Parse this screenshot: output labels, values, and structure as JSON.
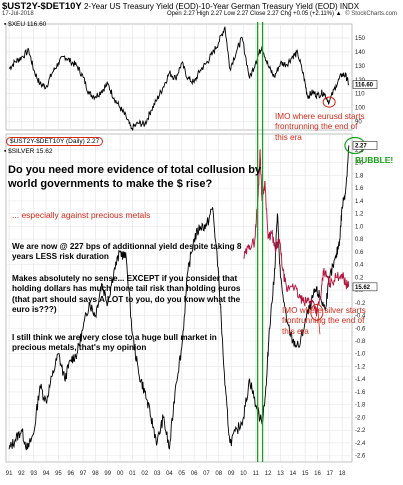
{
  "header": {
    "symbol": "$UST2Y-$DET10Y",
    "description": "2-Year US Treasury Yield (EOD)-10-Year German Treasury Yield (EOD) INDX",
    "date": "17-Jul-2018",
    "ohlc": "Open 2.27 High 2.27 Low 2.27 Close 2.27 Chg +0.05 (+2.11%) ▲",
    "brand": "© StockCharts.com"
  },
  "chart_data": [
    {
      "type": "line",
      "name": "upper-panel",
      "legend": "▪ $XEU 116.60",
      "series": [
        {
          "name": "$XEU",
          "color": "#000000",
          "points": [
            [
              1991.0,
              128
            ],
            [
              1991.5,
              133
            ],
            [
              1992.0,
              136
            ],
            [
              1992.6,
              141
            ],
            [
              1993.0,
              127
            ],
            [
              1993.5,
              117
            ],
            [
              1994.0,
              115
            ],
            [
              1994.5,
              125
            ],
            [
              1995.0,
              132
            ],
            [
              1995.5,
              137
            ],
            [
              1996.0,
              133
            ],
            [
              1996.5,
              130
            ],
            [
              1997.0,
              122
            ],
            [
              1997.5,
              110
            ],
            [
              1998.0,
              108
            ],
            [
              1998.5,
              112
            ],
            [
              1999.0,
              117
            ],
            [
              1999.5,
              107
            ],
            [
              2000.0,
              100
            ],
            [
              2000.5,
              93
            ],
            [
              2000.9,
              85
            ],
            [
              2001.5,
              89
            ],
            [
              2002.0,
              88
            ],
            [
              2002.5,
              98
            ],
            [
              2003.0,
              106
            ],
            [
              2003.5,
              115
            ],
            [
              2004.0,
              125
            ],
            [
              2004.5,
              121
            ],
            [
              2005.0,
              132
            ],
            [
              2005.5,
              121
            ],
            [
              2006.0,
              118
            ],
            [
              2006.5,
              127
            ],
            [
              2007.0,
              132
            ],
            [
              2007.5,
              139
            ],
            [
              2008.0,
              147
            ],
            [
              2008.5,
              158
            ],
            [
              2008.9,
              128
            ],
            [
              2009.5,
              142
            ],
            [
              2009.9,
              150
            ],
            [
              2010.5,
              121
            ],
            [
              2011.0,
              133
            ],
            [
              2011.5,
              144
            ],
            [
              2012.0,
              130
            ],
            [
              2012.5,
              122
            ],
            [
              2013.0,
              132
            ],
            [
              2013.5,
              131
            ],
            [
              2014.0,
              137
            ],
            [
              2014.4,
              139
            ],
            [
              2014.9,
              122
            ],
            [
              2015.2,
              108
            ],
            [
              2015.6,
              111
            ],
            [
              2016.0,
              109
            ],
            [
              2016.5,
              111
            ],
            [
              2016.95,
              104
            ],
            [
              2017.5,
              116
            ],
            [
              2018.0,
              124
            ],
            [
              2018.3,
              123
            ],
            [
              2018.55,
              116.6
            ]
          ]
        }
      ],
      "y_ticks": [
        90,
        100,
        110,
        120,
        130,
        140,
        150
      ],
      "ylim": [
        84,
        160
      ],
      "last_value": "116.60"
    },
    {
      "type": "line",
      "name": "lower-panel",
      "legend_1": "$UST2Y-$DET10Y (Daily) 2.27",
      "legend_2": "▪ $SILVER 15.62",
      "series": [
        {
          "name": "$UST2Y-$DET10Y",
          "color": "#000000",
          "points": [
            [
              1991.0,
              -2.5
            ],
            [
              1991.5,
              -2.35
            ],
            [
              1992.0,
              -2.2
            ],
            [
              1992.5,
              -2.5
            ],
            [
              1993.0,
              -2.25
            ],
            [
              1993.5,
              -1.5
            ],
            [
              1994.0,
              -1.75
            ],
            [
              1994.5,
              -1.35
            ],
            [
              1995.0,
              -1.0
            ],
            [
              1995.5,
              -1.4
            ],
            [
              1996.0,
              -1.1
            ],
            [
              1996.5,
              -1.0
            ],
            [
              1997.0,
              -0.6
            ],
            [
              1997.5,
              -0.2
            ],
            [
              1998.0,
              -0.4
            ],
            [
              1998.5,
              0.1
            ],
            [
              1999.0,
              -0.2
            ],
            [
              1999.5,
              0.3
            ],
            [
              2000.0,
              0.6
            ],
            [
              2000.5,
              0.5
            ],
            [
              2001.0,
              -0.7
            ],
            [
              2001.5,
              -1.3
            ],
            [
              2002.0,
              -1.6
            ],
            [
              2002.5,
              -2.0
            ],
            [
              2003.0,
              -2.4
            ],
            [
              2003.5,
              -2.0
            ],
            [
              2004.0,
              -2.5
            ],
            [
              2004.5,
              -1.5
            ],
            [
              2005.0,
              -0.9
            ],
            [
              2005.5,
              0.3
            ],
            [
              2006.0,
              0.8
            ],
            [
              2006.5,
              1.0
            ],
            [
              2007.0,
              1.0
            ],
            [
              2007.5,
              1.3
            ],
            [
              2008.0,
              0.2
            ],
            [
              2008.5,
              -1.5
            ],
            [
              2008.9,
              -2.4
            ],
            [
              2009.5,
              -2.2
            ],
            [
              2010.0,
              -2.0
            ],
            [
              2010.5,
              -1.4
            ],
            [
              2011.0,
              -1.8
            ],
            [
              2011.5,
              -2.1
            ],
            [
              2011.85,
              -1.5
            ],
            [
              2012.1,
              -0.6
            ],
            [
              2012.5,
              0.2
            ],
            [
              2012.75,
              1.2
            ],
            [
              2013.0,
              0.2
            ],
            [
              2013.5,
              -0.5
            ],
            [
              2014.0,
              -0.8
            ],
            [
              2014.5,
              -0.9
            ],
            [
              2015.0,
              -0.5
            ],
            [
              2015.5,
              -0.2
            ],
            [
              2015.85,
              0.0
            ],
            [
              2016.2,
              -0.1
            ],
            [
              2016.6,
              -0.3
            ],
            [
              2017.0,
              0.2
            ],
            [
              2017.5,
              0.5
            ],
            [
              2017.8,
              0.8
            ],
            [
              2018.0,
              1.3
            ],
            [
              2018.3,
              1.6
            ],
            [
              2018.55,
              2.27
            ]
          ]
        },
        {
          "name": "$SILVER",
          "color": "#b3123d",
          "points": [
            [
              2010.0,
              0.5
            ],
            [
              2010.5,
              0.7
            ],
            [
              2010.9,
              0.75
            ],
            [
              2011.2,
              1.5
            ],
            [
              2011.35,
              2.2
            ],
            [
              2011.5,
              1.4
            ],
            [
              2011.75,
              1.7
            ],
            [
              2012.0,
              0.8
            ],
            [
              2012.3,
              0.9
            ],
            [
              2012.6,
              0.6
            ],
            [
              2012.9,
              0.8
            ],
            [
              2013.2,
              0.3
            ],
            [
              2013.5,
              0.0
            ],
            [
              2014.0,
              0.1
            ],
            [
              2014.5,
              -0.1
            ],
            [
              2014.9,
              -0.2
            ],
            [
              2015.3,
              -0.15
            ],
            [
              2015.7,
              -0.2
            ],
            [
              2015.95,
              -0.35
            ],
            [
              2016.3,
              -0.05
            ],
            [
              2016.5,
              0.3
            ],
            [
              2016.8,
              0.2
            ],
            [
              2017.0,
              0.1
            ],
            [
              2017.5,
              0.2
            ],
            [
              2018.0,
              0.25
            ],
            [
              2018.3,
              0.1
            ],
            [
              2018.55,
              0.05
            ]
          ]
        }
      ],
      "y_ticks": [
        -2.6,
        -2.4,
        -2.2,
        -2.0,
        -1.8,
        -1.6,
        -1.4,
        -1.2,
        -1.0,
        -0.8,
        -0.6,
        -0.4,
        -0.2,
        0.0,
        0.2,
        0.4,
        0.6,
        0.8,
        1.0,
        1.2,
        1.4,
        1.6,
        1.8,
        2.0,
        2.2
      ],
      "ylim": [
        -2.7,
        2.45
      ],
      "last_value_1": "2.27",
      "last_value_2": "15.62"
    }
  ],
  "x_axis": {
    "xlim": [
      1990.75,
      2018.8
    ],
    "labels": [
      "91",
      "92",
      "93",
      "94",
      "95",
      "96",
      "97",
      "98",
      "99",
      "00",
      "01",
      "02",
      "03",
      "04",
      "05",
      "06",
      "07",
      "08",
      "09",
      "10",
      "11",
      "12",
      "13",
      "14",
      "15",
      "16",
      "17",
      "18"
    ]
  },
  "annotations": {
    "main_question": "Do you need more evidence of total collusion by world governments to make the $ rise?",
    "especially": "... especially against precious metals",
    "yield_text": "We are now @ 227 bps of additionnal yield despite taking 8 years LESS risk duration",
    "makes_sense": "Makes absolutely no sense... EXCEPT if you consider that holding dollars has much more tail risk than holding euros (that part should says A LOT to you, do you know what the euro is???)",
    "bull_market": "I still think we are very close to a huge bull market in precious metals, that's my opinion",
    "eurusd": "IMO where eurusd starts frontrunning the end of this era",
    "silver": "IMO where silver starts frontrunning the end of this era",
    "bubble": "BUBBLE!"
  },
  "colors": {
    "red_text": "#d42a1a",
    "green_mark": "#1aa11a",
    "silver_line": "#b3123d",
    "price_line": "#000000"
  }
}
